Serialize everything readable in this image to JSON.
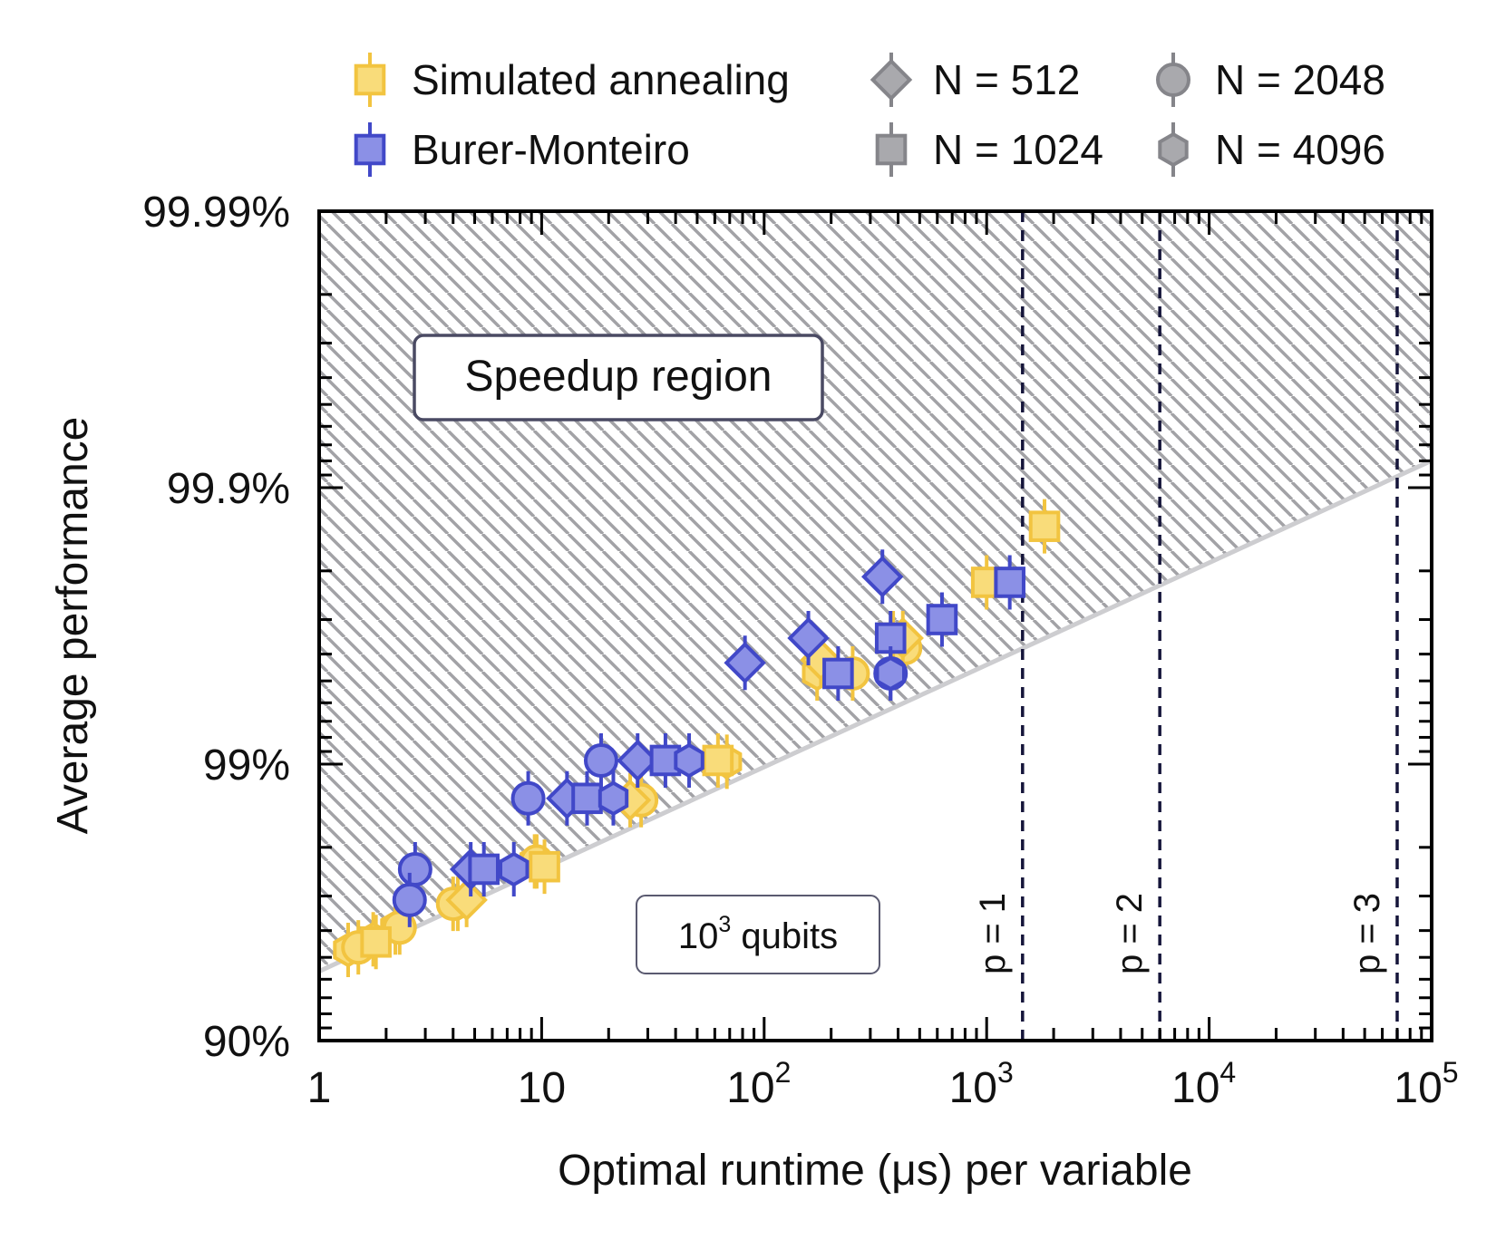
{
  "chart_data": {
    "type": "scatter",
    "xlabel": "Optimal runtime (μs) per variable",
    "ylabel": "Average performance",
    "xscale": "log",
    "xlim": [
      1,
      100000
    ],
    "yscale": "log of (1 - performance)",
    "ylim_infidelity": [
      0.1,
      0.0001
    ],
    "x_ticks": [
      {
        "value": 1,
        "base": "1",
        "exp": ""
      },
      {
        "value": 10,
        "base": "10",
        "exp": ""
      },
      {
        "value": 100,
        "base": "10",
        "exp": "2"
      },
      {
        "value": 1000,
        "base": "10",
        "exp": "3"
      },
      {
        "value": 10000,
        "base": "10",
        "exp": "4"
      },
      {
        "value": 100000,
        "base": "10",
        "exp": "5"
      }
    ],
    "y_ticks": [
      {
        "infidelity": 0.1,
        "label": "90%"
      },
      {
        "infidelity": 0.01,
        "label": "99%"
      },
      {
        "infidelity": 0.001,
        "label": "99.9%"
      },
      {
        "infidelity": 0.0001,
        "label": "99.99%"
      }
    ],
    "legend": {
      "position": "top",
      "methods": [
        {
          "key": "sa",
          "label": "Simulated annealing",
          "fill": "#f9dc7a",
          "stroke": "#f2c440"
        },
        {
          "key": "bm",
          "label": "Burer-Monteiro",
          "fill": "#8b90e6",
          "stroke": "#4148c8"
        }
      ],
      "sizes": [
        {
          "n": 512,
          "label": "N = 512",
          "shape": "diamond"
        },
        {
          "n": 1024,
          "label": "N = 1024",
          "shape": "square"
        },
        {
          "n": 2048,
          "label": "N = 2048",
          "shape": "circle"
        },
        {
          "n": 4096,
          "label": "N = 4096",
          "shape": "hexagon"
        }
      ],
      "gray_fill": "#a9a9ad",
      "gray_stroke": "#85858a"
    },
    "speedup_region": {
      "label": "Speedup region",
      "boundary": [
        [
          1.2,
          0.0525
        ],
        [
          90000,
          0.00083
        ]
      ],
      "hatch_color": "#a2a2a6"
    },
    "qubits_note": {
      "base": "10",
      "exp": "3",
      "suffix": " qubits"
    },
    "p_lines": [
      {
        "label": "p = 1",
        "x": 1450
      },
      {
        "label": "p = 2",
        "x": 6000
      },
      {
        "label": "p = 3",
        "x": 70000
      }
    ],
    "series": [
      {
        "method": "sa",
        "shape": "hexagon",
        "name": "Simulated annealing N=4096",
        "points": [
          {
            "x": 1.35,
            "y": 0.047
          },
          {
            "x": 1.75,
            "y": 0.043
          },
          {
            "x": 2.2,
            "y": 0.039
          },
          {
            "x": 4.2,
            "y": 0.032
          },
          {
            "x": 9.3,
            "y": 0.0225
          },
          {
            "x": 68,
            "y": 0.0098
          },
          {
            "x": 173,
            "y": 0.0047
          }
        ]
      },
      {
        "method": "sa",
        "shape": "circle",
        "name": "Simulated annealing N=2048",
        "points": [
          {
            "x": 1.5,
            "y": 0.046
          },
          {
            "x": 2.3,
            "y": 0.039
          },
          {
            "x": 4.0,
            "y": 0.032
          },
          {
            "x": 9.5,
            "y": 0.0225
          },
          {
            "x": 28,
            "y": 0.0135
          },
          {
            "x": 250,
            "y": 0.0047
          },
          {
            "x": 430,
            "y": 0.0038
          }
        ]
      },
      {
        "method": "sa",
        "shape": "square",
        "name": "Simulated annealing N=1024",
        "points": [
          {
            "x": 1.8,
            "y": 0.044
          },
          {
            "x": 10.3,
            "y": 0.0235
          },
          {
            "x": 62,
            "y": 0.0097
          },
          {
            "x": 380,
            "y": 0.0035
          },
          {
            "x": 1000,
            "y": 0.0022
          },
          {
            "x": 1820,
            "y": 0.00138
          }
        ]
      },
      {
        "method": "sa",
        "shape": "diamond",
        "name": "Simulated annealing N=512",
        "points": [
          {
            "x": 4.6,
            "y": 0.031
          },
          {
            "x": 25,
            "y": 0.0135
          },
          {
            "x": 180,
            "y": 0.0042
          },
          {
            "x": 420,
            "y": 0.0035
          }
        ]
      },
      {
        "method": "bm",
        "shape": "circle",
        "name": "Burer-Monteiro N=2048",
        "points": [
          {
            "x": 2.7,
            "y": 0.024
          },
          {
            "x": 2.55,
            "y": 0.031
          },
          {
            "x": 8.7,
            "y": 0.0133
          },
          {
            "x": 18.5,
            "y": 0.0097
          },
          {
            "x": 370,
            "y": 0.0047
          }
        ]
      },
      {
        "method": "bm",
        "shape": "diamond",
        "name": "Burer-Monteiro N=512",
        "points": [
          {
            "x": 4.8,
            "y": 0.024
          },
          {
            "x": 13,
            "y": 0.0133
          },
          {
            "x": 27,
            "y": 0.0097
          },
          {
            "x": 82,
            "y": 0.0043
          },
          {
            "x": 158,
            "y": 0.0035
          },
          {
            "x": 340,
            "y": 0.0021
          }
        ]
      },
      {
        "method": "bm",
        "shape": "square",
        "name": "Burer-Monteiro N=1024",
        "points": [
          {
            "x": 5.5,
            "y": 0.024
          },
          {
            "x": 16,
            "y": 0.0133
          },
          {
            "x": 36,
            "y": 0.0097
          },
          {
            "x": 215,
            "y": 0.0047
          },
          {
            "x": 370,
            "y": 0.0035
          },
          {
            "x": 630,
            "y": 0.003
          },
          {
            "x": 1270,
            "y": 0.0022
          }
        ]
      },
      {
        "method": "bm",
        "shape": "hexagon",
        "name": "Burer-Monteiro N=4096",
        "points": [
          {
            "x": 7.5,
            "y": 0.024
          },
          {
            "x": 21,
            "y": 0.0133
          },
          {
            "x": 46,
            "y": 0.0097
          },
          {
            "x": 370,
            "y": 0.0047
          }
        ]
      }
    ]
  }
}
